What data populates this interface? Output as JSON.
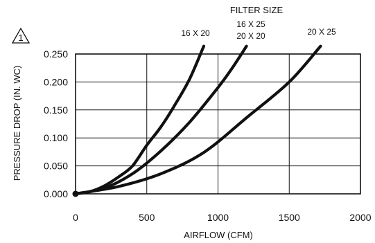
{
  "chart_data": {
    "type": "line",
    "legend_title": "FILTER SIZE",
    "xlabel": "AIRFLOW (CFM)",
    "ylabel": "PRESSURE DROP (IN. WC)",
    "xlim": [
      0,
      2000
    ],
    "ylim": [
      0,
      0.25
    ],
    "x_ticks": [
      0,
      500,
      1000,
      1500,
      2000
    ],
    "x_tick_labels": [
      "0",
      "500",
      "1000",
      "1500",
      "2000"
    ],
    "y_ticks": [
      0,
      0.05,
      0.1,
      0.15,
      0.2,
      0.25
    ],
    "y_tick_labels": [
      "0.000",
      "0.050",
      "0.100",
      "0.150",
      "0.200",
      "0.250"
    ],
    "grid": true,
    "note_marker": "1",
    "series": [
      {
        "name_lines": [
          "16 X 20"
        ],
        "x": [
          0,
          100,
          200,
          300,
          400,
          500,
          600,
          700,
          800,
          900
        ],
        "y": [
          0,
          0.004,
          0.014,
          0.03,
          0.05,
          0.087,
          0.12,
          0.16,
          0.205,
          0.264
        ]
      },
      {
        "name_lines": [
          "16 X 25",
          "20 X 20"
        ],
        "x": [
          0,
          200,
          400,
          600,
          800,
          1000,
          1100,
          1200
        ],
        "y": [
          0,
          0.01,
          0.036,
          0.077,
          0.128,
          0.19,
          0.225,
          0.264
        ]
      },
      {
        "name_lines": [
          "20 X 25"
        ],
        "x": [
          0,
          300,
          600,
          900,
          1200,
          1500,
          1720
        ],
        "y": [
          0,
          0.013,
          0.036,
          0.074,
          0.136,
          0.2,
          0.264
        ]
      }
    ]
  }
}
